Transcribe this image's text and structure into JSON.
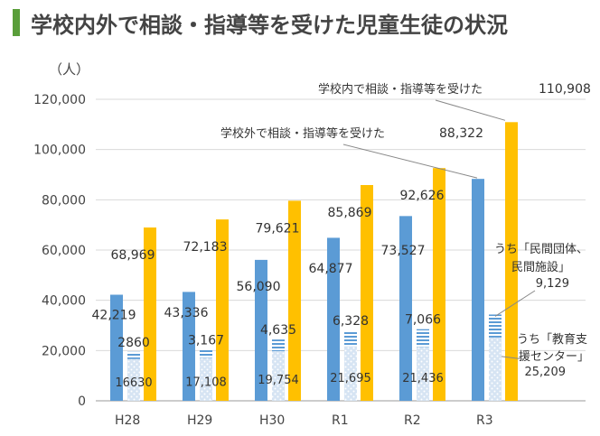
{
  "page": {
    "title": "学校内外で相談・指導等を受けた児童生徒の状況"
  },
  "chart_data": {
    "type": "bar",
    "ylabel": "（人）",
    "ylim": [
      0,
      120000
    ],
    "yticks": [
      0,
      20000,
      40000,
      60000,
      80000,
      100000,
      120000
    ],
    "ytick_labels": [
      "0",
      "20,000",
      "40,000",
      "60,000",
      "80,000",
      "100,000",
      "120,000"
    ],
    "categories": [
      "H28",
      "H29",
      "H30",
      "R1",
      "R2",
      "R3"
    ],
    "colors": {
      "outside": "#5b9bd5",
      "inside": "#ffc000",
      "private": "#5b9bd5",
      "center": "#5b9bd5"
    },
    "series": [
      {
        "key": "outside",
        "name": "学校外で相談・指導等を受けた",
        "values": [
          42219,
          43336,
          56090,
          64877,
          73527,
          88322
        ],
        "labels": [
          "42,219",
          "43,336",
          "56,090",
          "64,877",
          "73,527",
          "88,322"
        ]
      },
      {
        "key": "inside",
        "name": "学校内で相談・指導等を受けた",
        "values": [
          68969,
          72183,
          79621,
          85869,
          92626,
          110908
        ],
        "labels": [
          "68,969",
          "72,183",
          "79,621",
          "85,869",
          "92,626",
          "110,908"
        ]
      },
      {
        "key": "center",
        "name": "うち「教育支援センター」",
        "values": [
          16630,
          17108,
          19754,
          21695,
          21436,
          25209
        ],
        "labels": [
          "16630",
          "17,108",
          "19,754",
          "21,695",
          "21,436",
          "25,209"
        ]
      },
      {
        "key": "private",
        "name": "うち「民間団体、民間施設」",
        "values": [
          2860,
          3167,
          4635,
          6328,
          7066,
          9129
        ],
        "labels": [
          "2860",
          "3,167",
          "4,635",
          "6,328",
          "7,066",
          "9,129"
        ]
      }
    ],
    "annotations": {
      "inside": {
        "line1": "学校内で相談・指導等を受けた",
        "value": "110,908"
      },
      "outside": {
        "line1": "学校外で相談・指導等を受けた",
        "value": "88,322"
      },
      "private": {
        "line1": "うち「民間団体、",
        "line2": "民間施設」",
        "value": "9,129"
      },
      "center": {
        "line1": "うち「教育支",
        "line2": "援センター」",
        "value": "25,209"
      }
    }
  }
}
